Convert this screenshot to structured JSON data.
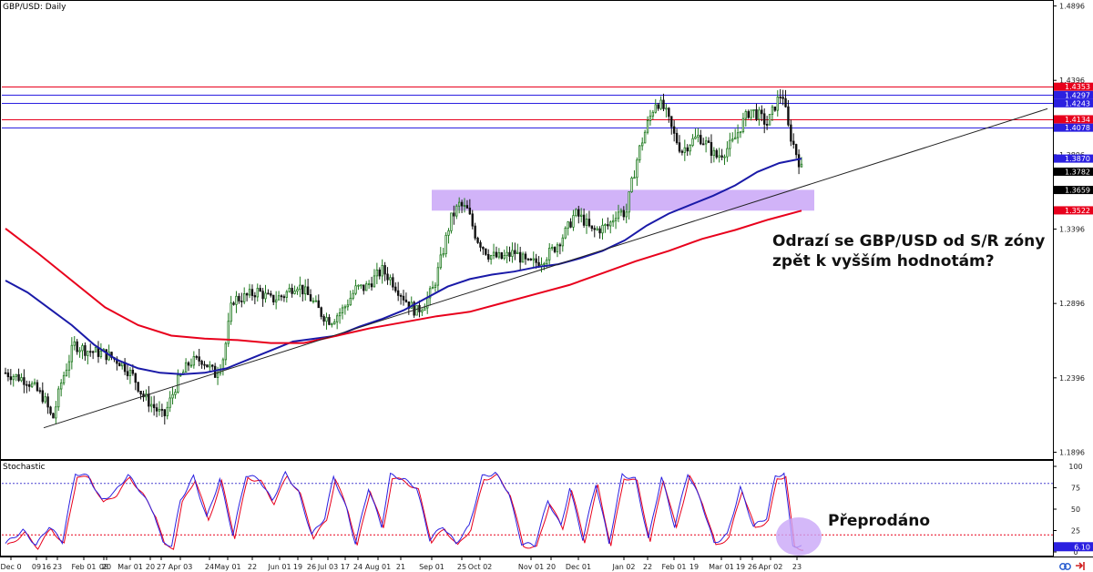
{
  "chart_data": [
    {
      "type": "candlestick",
      "title": "GBP/USD: Daily",
      "x_axis_labels": [
        "Dec 0",
        "09",
        "16",
        "23",
        "Feb 01",
        "08",
        "20",
        "Mar 01",
        "20",
        "27",
        "Apr 03",
        "24",
        "May 01",
        "22",
        "Jun 01",
        "19",
        "26",
        "Jul 03",
        "17",
        "24",
        "Aug 01",
        "21",
        "Sep 01",
        "25",
        "Oct 02",
        "Nov 01",
        "20",
        "Dec 01",
        "Jan 02",
        "22",
        "Feb 01",
        "19",
        "Mar 01",
        "19",
        "26",
        "Apr 02",
        "23"
      ],
      "y_ticks": [
        "1.4896",
        "1.4396",
        "1.3896",
        "1.3396",
        "1.2896",
        "1.2396",
        "1.1896"
      ],
      "ylim": [
        1.185,
        1.493
      ],
      "price_labels": [
        {
          "text": "1.4353",
          "value": 1.4353,
          "color": "#e8001c"
        },
        {
          "text": "1.4297",
          "value": 1.4297,
          "color": "#2b20e0"
        },
        {
          "text": "1.4243",
          "value": 1.4243,
          "color": "#2b20e0"
        },
        {
          "text": "1.4134",
          "value": 1.4134,
          "color": "#e8001c"
        },
        {
          "text": "1.4078",
          "value": 1.4078,
          "color": "#2b20e0"
        },
        {
          "text": "1.3870",
          "value": 1.387,
          "color": "#2b20e0"
        },
        {
          "text": "1.3782",
          "value": 1.3782,
          "color": "#000000"
        },
        {
          "text": "1.3659",
          "value": 1.3659,
          "color": "#000000"
        },
        {
          "text": "1.3522",
          "value": 1.3522,
          "color": "#e8001c"
        }
      ],
      "horizontal_levels": [
        {
          "value": 1.4353,
          "color": "#e8001c"
        },
        {
          "value": 1.4297,
          "color": "#2b20e0"
        },
        {
          "value": 1.4243,
          "color": "#2b20e0"
        },
        {
          "value": 1.4134,
          "color": "#e8001c"
        },
        {
          "value": 1.4078,
          "color": "#2b20e0"
        }
      ],
      "sr_zone": {
        "from": 1.352,
        "to": 1.366,
        "color": "#c9a6f7"
      },
      "trendline": {
        "start": {
          "x": "Dec 16",
          "y": 1.206
        },
        "end": {
          "x": "Apr 30",
          "y": 1.4205
        }
      },
      "series": [
        {
          "name": "",
          "color": "#1a1aa8",
          "points": [
            [
              0,
              1.305
            ],
            [
              10,
              1.297
            ],
            [
              20,
              1.286
            ],
            [
              30,
              1.275
            ],
            [
              40,
              1.262
            ],
            [
              50,
              1.252
            ],
            [
              60,
              1.246
            ],
            [
              70,
              1.243
            ],
            [
              80,
              1.242
            ],
            [
              90,
              1.243
            ],
            [
              100,
              1.246
            ],
            [
              110,
              1.252
            ],
            [
              120,
              1.258
            ],
            [
              130,
              1.264
            ],
            [
              140,
              1.266
            ],
            [
              150,
              1.268
            ],
            [
              160,
              1.274
            ],
            [
              170,
              1.279
            ],
            [
              180,
              1.285
            ],
            [
              190,
              1.293
            ],
            [
              200,
              1.301
            ],
            [
              210,
              1.306
            ],
            [
              220,
              1.309
            ],
            [
              230,
              1.311
            ],
            [
              240,
              1.314
            ],
            [
              250,
              1.316
            ],
            [
              260,
              1.32
            ],
            [
              270,
              1.325
            ],
            [
              280,
              1.332
            ],
            [
              290,
              1.342
            ],
            [
              300,
              1.35
            ],
            [
              310,
              1.356
            ],
            [
              320,
              1.362
            ],
            [
              330,
              1.369
            ],
            [
              340,
              1.378
            ],
            [
              350,
              1.384
            ],
            [
              360,
              1.387
            ]
          ]
        },
        {
          "name": "",
          "color": "#e8001c",
          "points": [
            [
              0,
              1.34
            ],
            [
              15,
              1.323
            ],
            [
              30,
              1.305
            ],
            [
              45,
              1.287
            ],
            [
              60,
              1.275
            ],
            [
              75,
              1.268
            ],
            [
              90,
              1.266
            ],
            [
              105,
              1.265
            ],
            [
              120,
              1.263
            ],
            [
              135,
              1.263
            ],
            [
              150,
              1.268
            ],
            [
              165,
              1.273
            ],
            [
              180,
              1.277
            ],
            [
              195,
              1.281
            ],
            [
              210,
              1.284
            ],
            [
              225,
              1.29
            ],
            [
              240,
              1.296
            ],
            [
              255,
              1.302
            ],
            [
              270,
              1.31
            ],
            [
              285,
              1.318
            ],
            [
              300,
              1.325
            ],
            [
              315,
              1.333
            ],
            [
              330,
              1.339
            ],
            [
              345,
              1.346
            ],
            [
              360,
              1.352
            ]
          ]
        }
      ],
      "annotation": "Odrazí se GBP/USD od S/R zóny zpět k vyšším hodnotám?",
      "annotation_lines": [
        "Odrazí se GBP/USD od S/R zóny",
        "zpět k vyšším hodnotám?"
      ]
    },
    {
      "type": "line",
      "title": "Stochastic",
      "y_ticks": [
        "100",
        "75",
        "50",
        "25",
        "0"
      ],
      "ylim": [
        0,
        100
      ],
      "levels": [
        {
          "value": 80,
          "color": "#4a43d0"
        },
        {
          "value": 20,
          "color": "#e8001c"
        }
      ],
      "current_label": {
        "text": "6.10",
        "value": 6.1
      },
      "series": [
        {
          "name": "",
          "color": "#2b20e0"
        },
        {
          "name": "",
          "color": "#e8001c"
        }
      ],
      "annotation": "Přeprodáno"
    }
  ],
  "colors": {
    "bull": "#1f7a1f",
    "bear": "#111111",
    "panel_border": "#000000",
    "axis_text": "#222222",
    "oversold_circle": "#c9a6f7",
    "footer_icon": "#2b5fd0",
    "footer_icon_red": "#d02020"
  },
  "icons": [
    "link-icon",
    "exit-icon"
  ]
}
